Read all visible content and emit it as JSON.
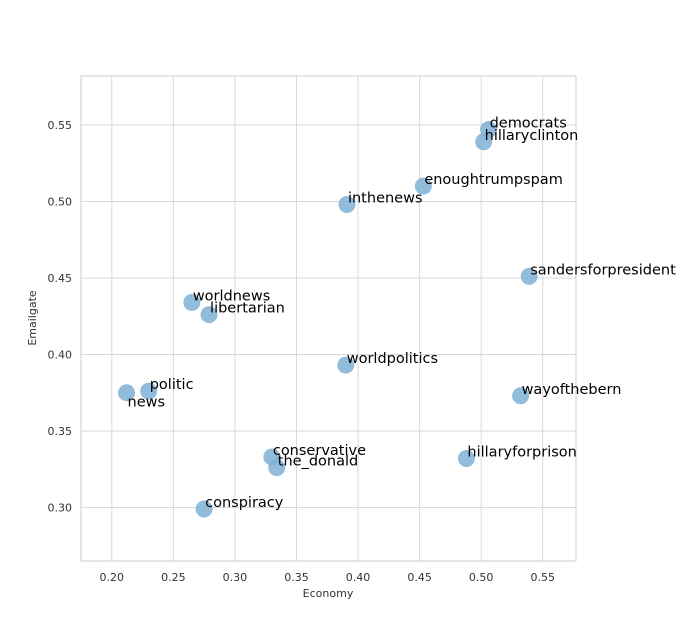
{
  "chart_data": {
    "type": "scatter",
    "xlabel": "Economy",
    "ylabel": "Emailgate",
    "xlim": [
      0.175,
      0.577
    ],
    "ylim": [
      0.265,
      0.582
    ],
    "xticks": [
      "0.20",
      "0.25",
      "0.30",
      "0.35",
      "0.40",
      "0.45",
      "0.50",
      "0.55"
    ],
    "yticks": [
      "0.30",
      "0.35",
      "0.40",
      "0.45",
      "0.50",
      "0.55"
    ],
    "grid": true,
    "point_color": "#7fb0d6",
    "points": [
      {
        "label": "democrats",
        "x": 0.506,
        "y": 0.547
      },
      {
        "label": "hillaryclinton",
        "x": 0.502,
        "y": 0.539
      },
      {
        "label": "enoughtrumpspam",
        "x": 0.453,
        "y": 0.51
      },
      {
        "label": "inthenews",
        "x": 0.391,
        "y": 0.498
      },
      {
        "label": "sandersforpresident",
        "x": 0.539,
        "y": 0.451
      },
      {
        "label": "worldnews",
        "x": 0.265,
        "y": 0.434
      },
      {
        "label": "libertarian",
        "x": 0.279,
        "y": 0.426
      },
      {
        "label": "worldpolitics",
        "x": 0.39,
        "y": 0.393
      },
      {
        "label": "politic",
        "x": 0.23,
        "y": 0.376
      },
      {
        "label": "news",
        "x": 0.212,
        "y": 0.375
      },
      {
        "label": "wayofthebern",
        "x": 0.532,
        "y": 0.373
      },
      {
        "label": "conservative",
        "x": 0.33,
        "y": 0.333
      },
      {
        "label": "the_donald",
        "x": 0.334,
        "y": 0.326
      },
      {
        "label": "hillaryforprison",
        "x": 0.488,
        "y": 0.332
      },
      {
        "label": "conspiracy",
        "x": 0.275,
        "y": 0.299
      }
    ]
  }
}
